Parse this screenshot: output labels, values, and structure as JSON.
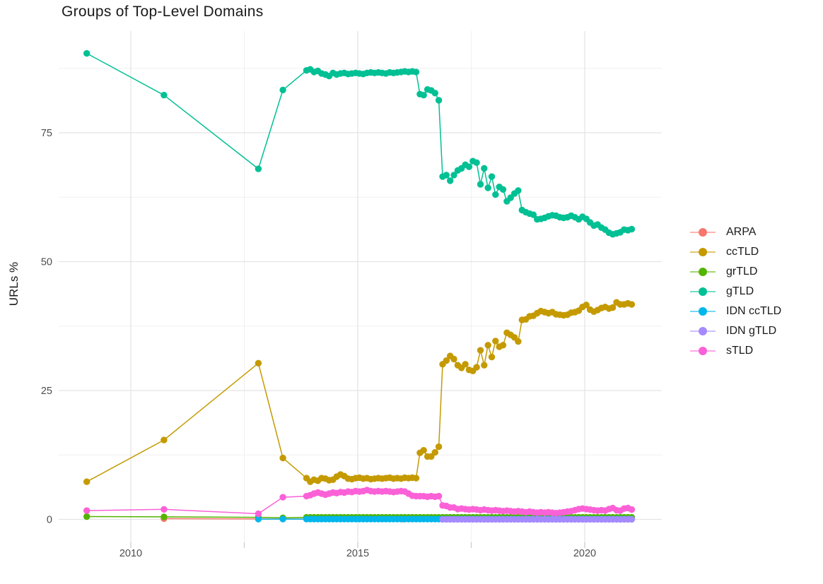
{
  "title": "Groups of Top-Level Domains",
  "y_axis": {
    "title": "URLs %",
    "tick_labels": [
      "0",
      "25",
      "50",
      "75"
    ],
    "tick_values": [
      0,
      25,
      50,
      75
    ]
  },
  "x_axis": {
    "tick_labels": [
      "2010",
      "2015",
      "2020"
    ],
    "tick_values": [
      2010,
      2015,
      2020
    ]
  },
  "chart_data": {
    "type": "line",
    "title": "Groups of Top-Level Domains",
    "xlabel": "",
    "ylabel": "URLs %",
    "x_range": [
      2009.0,
      2021.1
    ],
    "ylim": [
      0,
      91
    ],
    "grid": true,
    "legend_position": "right",
    "x_major_ticks": [
      2010,
      2015,
      2020
    ],
    "x_minor_ticks": [
      2012.5,
      2017.5
    ],
    "y_major_ticks": [
      0,
      25,
      50,
      75
    ],
    "y_minor_ticks": [
      12.5,
      37.5,
      62.5,
      87.5
    ],
    "monthly_step": 0.0833,
    "series": [
      {
        "name": "ARPA",
        "color": "#F8766D",
        "head": [
          [
            2010.73,
            0.15
          ],
          [
            2012.81,
            0.08
          ],
          [
            2016.0,
            0.05
          ],
          [
            2021.03,
            0.05
          ]
        ],
        "monthly": null
      },
      {
        "name": "ccTLD",
        "color": "#C49A00",
        "head": [
          [
            2009.03,
            7.3
          ],
          [
            2010.73,
            15.4
          ],
          [
            2012.81,
            30.3
          ],
          [
            2013.35,
            11.9
          ]
        ],
        "monthly_start": 2013.87,
        "monthly": [
          8.0,
          7.3,
          7.7,
          7.5,
          8.0,
          7.9,
          7.6,
          7.7,
          8.3,
          8.7,
          8.4,
          7.9,
          7.8,
          8.0,
          8.1,
          7.9,
          8.0,
          7.8,
          7.9,
          8.0,
          7.9,
          8.0,
          8.1,
          7.9,
          8.0,
          7.9,
          8.1,
          8.0,
          8.1,
          8.0,
          12.9,
          13.4,
          12.2,
          12.2,
          13.0,
          14.1,
          30.1,
          30.8,
          31.7,
          31.1,
          29.9,
          29.4,
          30.1,
          29.0,
          28.8,
          29.5,
          32.8,
          29.9,
          33.8,
          31.5,
          34.6,
          33.5,
          33.8,
          36.2,
          35.8,
          35.3,
          34.5,
          38.7,
          38.8,
          39.4,
          39.5,
          40.0,
          40.4,
          40.2,
          40.0,
          40.2,
          39.8,
          39.7,
          39.6,
          39.7,
          40.1,
          40.2,
          40.5,
          41.2,
          41.6,
          40.7,
          40.3,
          40.6,
          41.0,
          41.2,
          40.9,
          41.1,
          42.1,
          41.7,
          41.7,
          41.9,
          41.7
        ]
      },
      {
        "name": "grTLD",
        "color": "#53B400",
        "head": [
          [
            2009.03,
            0.55
          ],
          [
            2010.73,
            0.5
          ],
          [
            2012.81,
            0.4
          ],
          [
            2013.35,
            0.3
          ]
        ],
        "monthly_start": 2013.87,
        "monthly": {
          "count": 87,
          "value": 0.4
        }
      },
      {
        "name": "gTLD",
        "color": "#00C094",
        "head": [
          [
            2009.03,
            90.4
          ],
          [
            2010.73,
            82.3
          ],
          [
            2012.81,
            68.0
          ],
          [
            2013.35,
            83.3
          ]
        ],
        "monthly_start": 2013.87,
        "monthly": [
          87.1,
          87.3,
          86.8,
          87.0,
          86.5,
          86.3,
          86.0,
          86.6,
          86.3,
          86.5,
          86.6,
          86.4,
          86.5,
          86.6,
          86.5,
          86.4,
          86.6,
          86.7,
          86.6,
          86.7,
          86.6,
          86.5,
          86.7,
          86.6,
          86.7,
          86.8,
          86.9,
          86.8,
          86.9,
          86.8,
          82.5,
          82.3,
          83.4,
          83.2,
          82.7,
          81.3,
          66.5,
          66.8,
          65.7,
          66.8,
          67.7,
          68.1,
          68.8,
          68.4,
          69.5,
          69.2,
          65.0,
          68.1,
          64.3,
          66.5,
          63.0,
          64.5,
          64.0,
          61.7,
          62.4,
          63.2,
          63.8,
          60.0,
          59.6,
          59.3,
          59.1,
          58.2,
          58.3,
          58.5,
          58.8,
          59.0,
          58.9,
          58.6,
          58.5,
          58.6,
          58.9,
          58.6,
          58.2,
          58.7,
          58.3,
          57.6,
          57.0,
          57.2,
          56.6,
          56.2,
          55.6,
          55.3,
          55.5,
          55.7,
          56.2,
          56.1,
          56.3
        ]
      },
      {
        "name": "IDN ccTLD",
        "color": "#00B6EB",
        "head": [
          [
            2012.81,
            0.05
          ],
          [
            2013.35,
            0.05
          ]
        ],
        "monthly_start": 2013.87,
        "monthly": {
          "count": 87,
          "value": 0.05
        }
      },
      {
        "name": "IDN gTLD",
        "color": "#A58AFF",
        "head": [],
        "monthly_start": 2016.87,
        "monthly": {
          "count": 51,
          "value": 0.02
        }
      },
      {
        "name": "sTLD",
        "color": "#FB61D7",
        "head": [
          [
            2009.03,
            1.7
          ],
          [
            2010.73,
            1.95
          ],
          [
            2012.81,
            1.1
          ],
          [
            2013.35,
            4.3
          ]
        ],
        "monthly_start": 2013.87,
        "monthly": [
          4.5,
          4.7,
          5.0,
          5.2,
          5.0,
          4.8,
          5.0,
          5.2,
          5.1,
          5.3,
          5.2,
          5.4,
          5.3,
          5.5,
          5.4,
          5.5,
          5.7,
          5.5,
          5.4,
          5.5,
          5.4,
          5.5,
          5.4,
          5.3,
          5.4,
          5.5,
          5.4,
          5.0,
          4.6,
          4.5,
          4.5,
          4.5,
          4.4,
          4.5,
          4.4,
          4.5,
          2.7,
          2.6,
          2.3,
          2.3,
          2.0,
          2.1,
          2.0,
          1.9,
          2.0,
          1.9,
          1.8,
          1.9,
          1.8,
          1.7,
          1.8,
          1.7,
          1.6,
          1.7,
          1.6,
          1.5,
          1.6,
          1.5,
          1.4,
          1.5,
          1.4,
          1.3,
          1.4,
          1.3,
          1.4,
          1.3,
          1.2,
          1.3,
          1.4,
          1.5,
          1.6,
          1.8,
          2.0,
          2.1,
          2.0,
          1.9,
          1.8,
          1.7,
          1.8,
          1.7,
          2.0,
          2.2,
          1.8,
          1.7,
          2.1,
          2.2,
          1.9
        ]
      }
    ]
  }
}
